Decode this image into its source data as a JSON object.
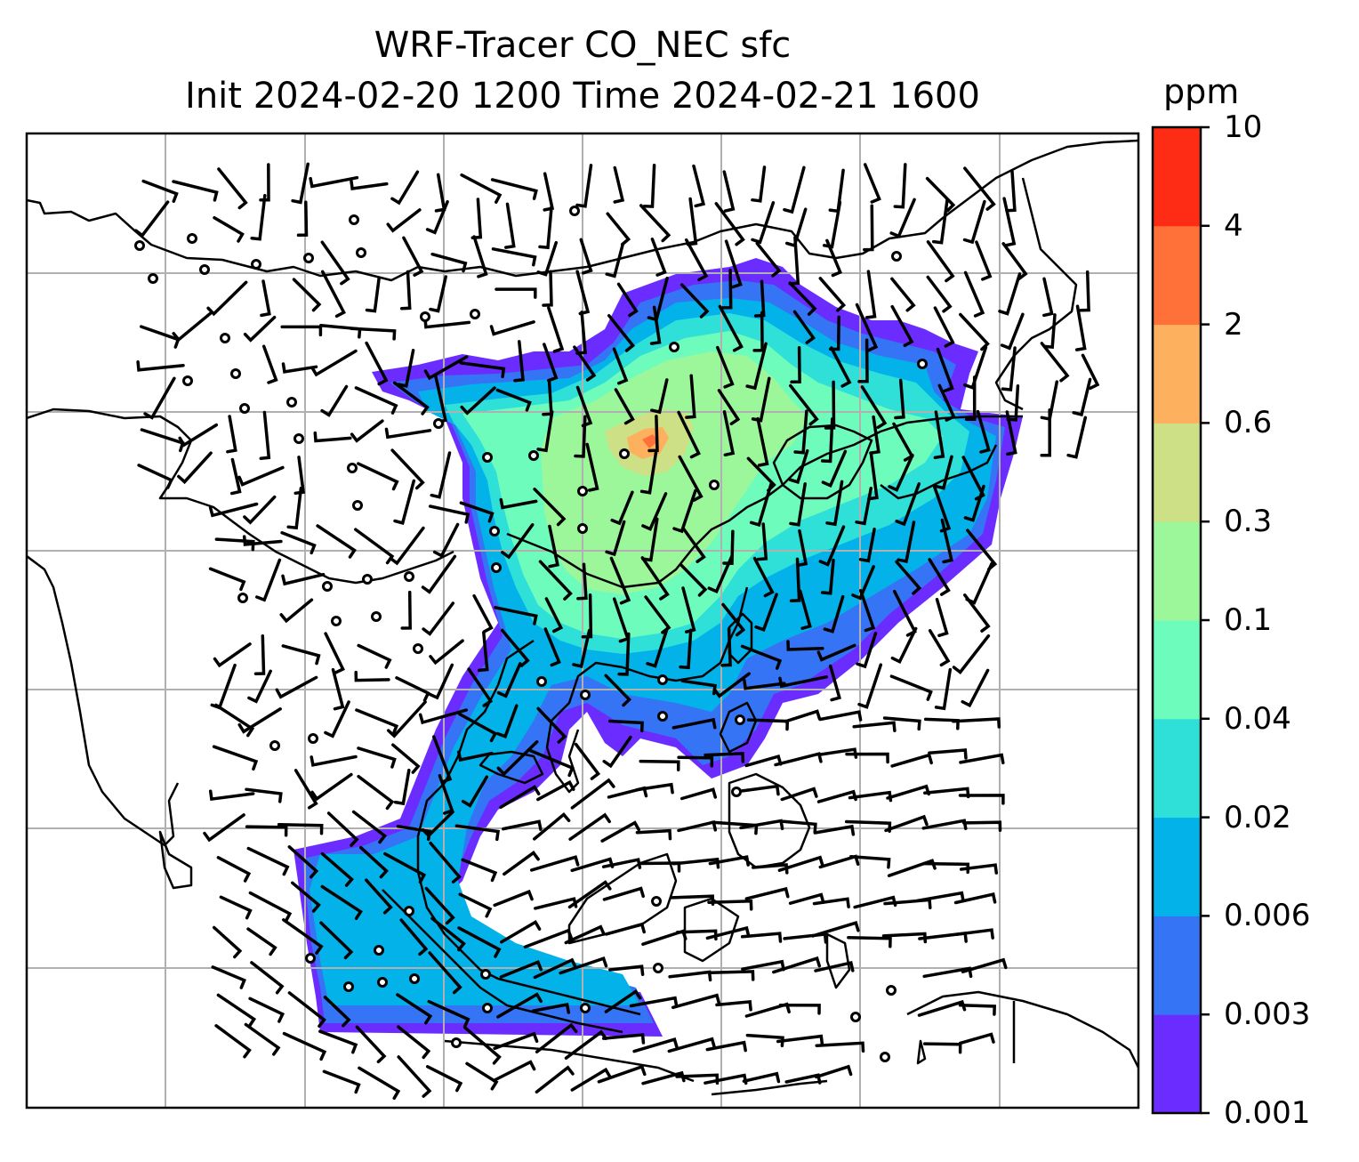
{
  "title_line1": "WRF-Tracer CO_NEC sfc",
  "title_line2": "Init 2024-02-20 1200 Time 2024-02-21 1600",
  "colorbar": {
    "unit": "ppm",
    "levels": [
      "0.001",
      "0.003",
      "0.006",
      "0.02",
      "0.04",
      "0.1",
      "0.3",
      "0.6",
      "2",
      "4",
      "10"
    ],
    "colors": [
      "#6a2cff",
      "#3574f4",
      "#03b2e8",
      "#2ee0d8",
      "#6efcbc",
      "#9cf79a",
      "#cde085",
      "#fdb15e",
      "#ff7138",
      "#ff2c15"
    ]
  },
  "map": {
    "field": "CO_NEC surface tracer concentration",
    "overlays": [
      "coastlines",
      "country-borders",
      "lat-lon-gridlines",
      "wind-barbs"
    ],
    "calm_symbol": "circle"
  }
}
